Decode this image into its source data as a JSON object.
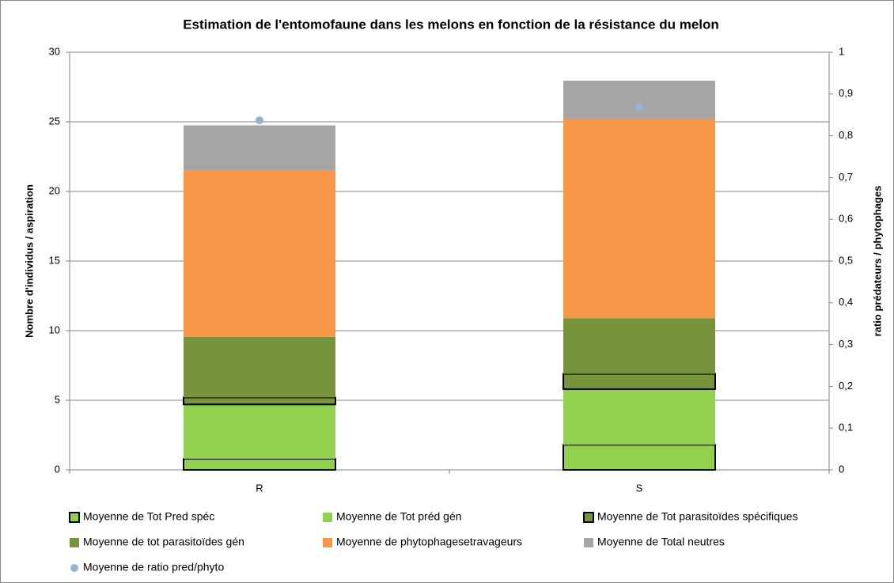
{
  "chart_data": {
    "type": "bar",
    "stacked": true,
    "title": "Estimation de l'entomofaune dans les melons en fonction de la résistance du melon",
    "ylabel": "Nombre d'individus / aspiration",
    "y2label": "ratio prédateurs / phytophages",
    "categories": [
      "R",
      "S"
    ],
    "ylim": [
      0,
      30
    ],
    "yticks": [
      0,
      5,
      10,
      15,
      20,
      25,
      30
    ],
    "y2lim": [
      0,
      1
    ],
    "y2ticks": [
      0,
      {
        "value": 0.1,
        "label": "0,1"
      },
      {
        "value": 0.2,
        "label": "0,2"
      },
      {
        "value": 0.3,
        "label": "0,3"
      },
      {
        "value": 0.4,
        "label": "0,4"
      },
      {
        "value": 0.5,
        "label": "0,5"
      },
      {
        "value": 0.6,
        "label": "0,6"
      },
      {
        "value": 0.7,
        "label": "0,7"
      },
      {
        "value": 0.8,
        "label": "0,8"
      },
      {
        "value": 0.9,
        "label": "0,9"
      },
      1
    ],
    "grid": true,
    "legend": "bottom",
    "series": [
      {
        "name": "Moyenne de Tot Pred spéc",
        "color": "#92d050",
        "edgecolor": "#000000",
        "values": [
          0.8,
          1.8
        ]
      },
      {
        "name": "Moyenne de Tot préd gén",
        "color": "#92d050",
        "values": [
          3.9,
          4.0
        ]
      },
      {
        "name": "Moyenne de Tot parasitoïdes spécifiques",
        "color": "#77933c",
        "edgecolor": "#000000",
        "values": [
          0.5,
          1.1
        ]
      },
      {
        "name": "Moyenne de tot parasitoïdes gén",
        "color": "#77933c",
        "values": [
          4.35,
          4.0
        ]
      },
      {
        "name": "Moyenne de  phytophagesetravageurs",
        "color": "#f79646",
        "values": [
          11.95,
          14.3
        ]
      },
      {
        "name": "Moyenne de Total neutres",
        "color": "#a5a5a5",
        "values": [
          3.25,
          2.75
        ]
      },
      {
        "name": "Moyenne de ratio pred/phyto",
        "color": "#95b3d7",
        "type": "scatter",
        "axis": "y2",
        "values": [
          0.837,
          0.869
        ]
      }
    ]
  }
}
